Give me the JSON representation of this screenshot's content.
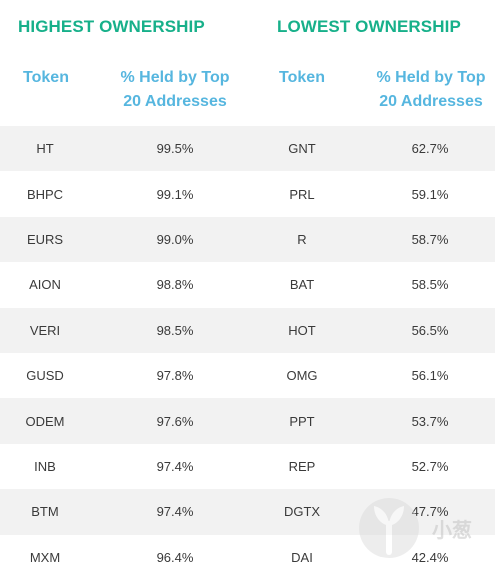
{
  "highest": {
    "title": "HIGHEST OWNERSHIP",
    "col_token": "Token",
    "col_held_line1": "% Held by Top",
    "col_held_line2": "20 Addresses"
  },
  "lowest": {
    "title": "LOWEST OWNERSHIP",
    "col_token": "Token",
    "col_held_line1": "% Held by Top",
    "col_held_line2": "20 Addresses"
  },
  "rows": [
    {
      "high_token": "HT",
      "high_pct": "99.5%",
      "low_token": "GNT",
      "low_pct": "62.7%"
    },
    {
      "high_token": "BHPC",
      "high_pct": "99.1%",
      "low_token": "PRL",
      "low_pct": "59.1%"
    },
    {
      "high_token": "EURS",
      "high_pct": "99.0%",
      "low_token": "R",
      "low_pct": "58.7%"
    },
    {
      "high_token": "AION",
      "high_pct": "98.8%",
      "low_token": "BAT",
      "low_pct": "58.5%"
    },
    {
      "high_token": "VERI",
      "high_pct": "98.5%",
      "low_token": "HOT",
      "low_pct": "56.5%"
    },
    {
      "high_token": "GUSD",
      "high_pct": "97.8%",
      "low_token": "OMG",
      "low_pct": "56.1%"
    },
    {
      "high_token": "ODEM",
      "high_pct": "97.6%",
      "low_token": "PPT",
      "low_pct": "53.7%"
    },
    {
      "high_token": "INB",
      "high_pct": "97.4%",
      "low_token": "REP",
      "low_pct": "52.7%"
    },
    {
      "high_token": "BTM",
      "high_pct": "97.4%",
      "low_token": "DGTX",
      "low_pct": "47.7%"
    },
    {
      "high_token": "MXM",
      "high_pct": "96.4%",
      "low_token": "DAI",
      "low_pct": "42.4%"
    }
  ],
  "watermark": {
    "text": "小葱",
    "icon": "leaf-logo-icon",
    "color": "#b9b9b9"
  },
  "colors": {
    "title": "#17b08a",
    "column_header": "#56b6df",
    "row_shade": "#f2f2f2",
    "cell_text": "#3a3a3a"
  }
}
